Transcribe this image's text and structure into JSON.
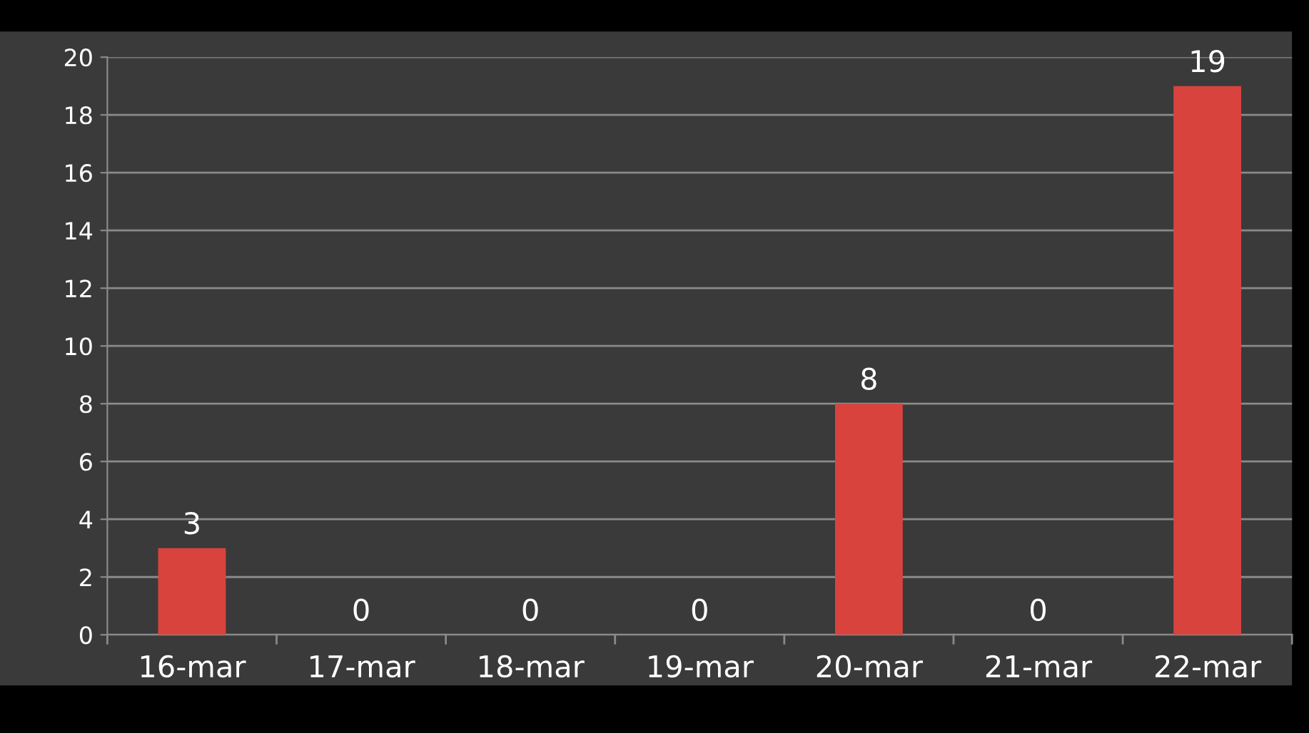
{
  "chart_data": {
    "type": "bar",
    "categories": [
      "16-mar",
      "17-mar",
      "18-mar",
      "19-mar",
      "20-mar",
      "21-mar",
      "22-mar"
    ],
    "values": [
      3,
      0,
      0,
      0,
      8,
      0,
      19
    ],
    "color": "#d9433e",
    "ylim": [
      0,
      20
    ],
    "yticks": [
      0,
      2,
      4,
      6,
      8,
      10,
      12,
      14,
      16,
      18,
      20
    ],
    "grid": "y",
    "data_labels": true
  }
}
